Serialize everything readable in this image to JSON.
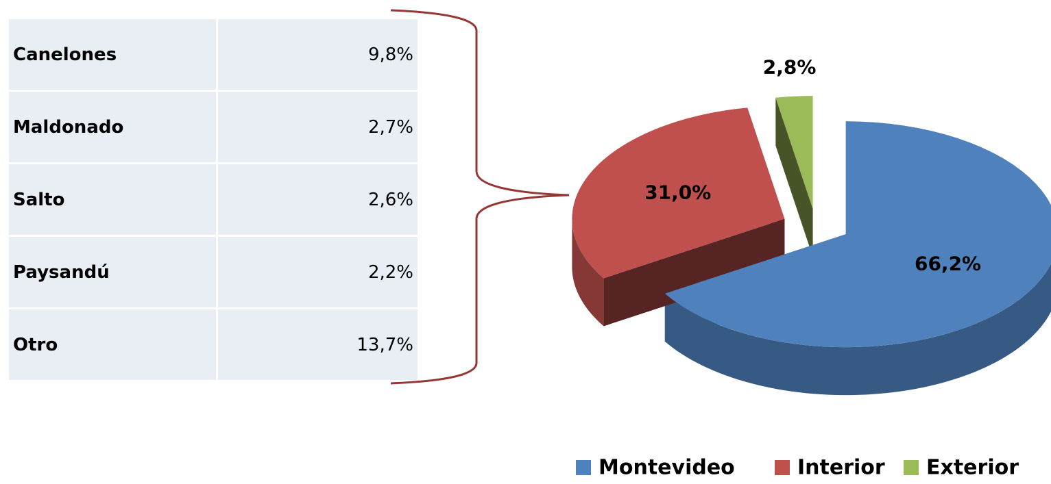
{
  "table": {
    "rows": [
      [
        "Canelones",
        "9,8%"
      ],
      [
        "Maldonado",
        "2,7%"
      ],
      [
        "Salto",
        "2,6%"
      ],
      [
        "Paysandú",
        "2,2%"
      ],
      [
        "Otro",
        "13,7%"
      ]
    ]
  },
  "chart_data": {
    "type": "pie",
    "categories": [
      "Montevideo",
      "Interior",
      "Exterior"
    ],
    "values": [
      66.2,
      31.0,
      2.8
    ],
    "value_labels": [
      "66,2%",
      "31,0%",
      "2,8%"
    ],
    "colors": [
      "#4f81bd",
      "#c0504d",
      "#9bbb59"
    ],
    "legend": "bottom-right"
  }
}
